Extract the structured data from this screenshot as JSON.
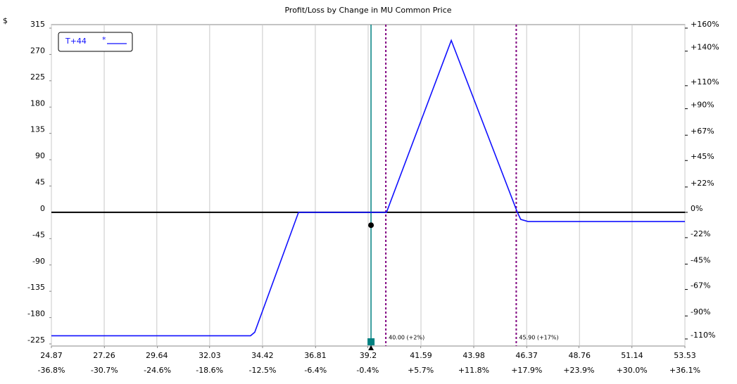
{
  "chart_data": {
    "type": "line",
    "title": "Profit/Loss by Change in MU Common Price",
    "y_unit_label": "$",
    "series": [
      {
        "name": "T+44",
        "color": "#1010ff",
        "x": [
          24.87,
          33.88,
          34.07,
          36.05,
          40.03,
          42.96,
          45.95,
          46.1,
          46.43,
          53.53
        ],
        "values": [
          -211,
          -211,
          -205,
          0,
          0,
          294,
          0,
          -12,
          -15.6,
          -15.6
        ]
      }
    ],
    "legend_symbol": "*",
    "legend": "upper left",
    "xlim": [
      24.87,
      53.53
    ],
    "xticks": [
      24.87,
      27.26,
      29.64,
      32.03,
      34.42,
      36.81,
      39.2,
      41.59,
      43.98,
      46.37,
      48.76,
      51.14,
      53.53
    ],
    "x2lim": [
      -36.8,
      36.1
    ],
    "x2ticks": [
      {
        "value": -36.8,
        "label": "-36.8%"
      },
      {
        "value": -30.7,
        "label": "-30.7%"
      },
      {
        "value": -24.6,
        "label": "-24.6%"
      },
      {
        "value": -18.6,
        "label": "-18.6%"
      },
      {
        "value": -12.5,
        "label": "-12.5%"
      },
      {
        "value": -6.4,
        "label": "-6.4%"
      },
      {
        "value": -0.4,
        "label": "-0.4%"
      },
      {
        "value": 5.7,
        "label": "+5.7%"
      },
      {
        "value": 11.8,
        "label": "+11.8%"
      },
      {
        "value": 17.9,
        "label": "+17.9%"
      },
      {
        "value": 23.9,
        "label": "+23.9%"
      },
      {
        "value": 30.0,
        "label": "+30.0%"
      },
      {
        "value": 36.1,
        "label": "+36.1%"
      }
    ],
    "ylim": [
      -225,
      315
    ],
    "yticks": [
      315,
      270,
      225,
      180,
      135,
      90,
      45,
      0,
      -45,
      -90,
      -135,
      -180,
      -225
    ],
    "y2lim": [
      -114.3,
      160
    ],
    "y2ticks": [
      {
        "value": 160,
        "label": "+160%"
      },
      {
        "value": 140,
        "label": "+140%"
      },
      {
        "value": 110,
        "label": "+110%"
      },
      {
        "value": 90,
        "label": "+90%"
      },
      {
        "value": 67,
        "label": "+67%"
      },
      {
        "value": 45,
        "label": "+45%"
      },
      {
        "value": 22,
        "label": "+22%"
      },
      {
        "value": 0,
        "label": "0%"
      },
      {
        "value": -22,
        "label": "-22%"
      },
      {
        "value": -45,
        "label": "-45%"
      },
      {
        "value": -67,
        "label": "-67%"
      },
      {
        "value": -90,
        "label": "-90%"
      },
      {
        "value": -110,
        "label": "-110%"
      }
    ],
    "grid": true,
    "annotations": [
      {
        "x": 40.0,
        "label": "40.00 (+2%)",
        "color": "#800080"
      },
      {
        "x": 45.9,
        "label": "45.90 (+17%)",
        "color": "#800080"
      }
    ],
    "current_price": {
      "x": 39.33,
      "color": "#008080"
    },
    "current_pl": {
      "x": 39.33,
      "value": -22
    }
  }
}
